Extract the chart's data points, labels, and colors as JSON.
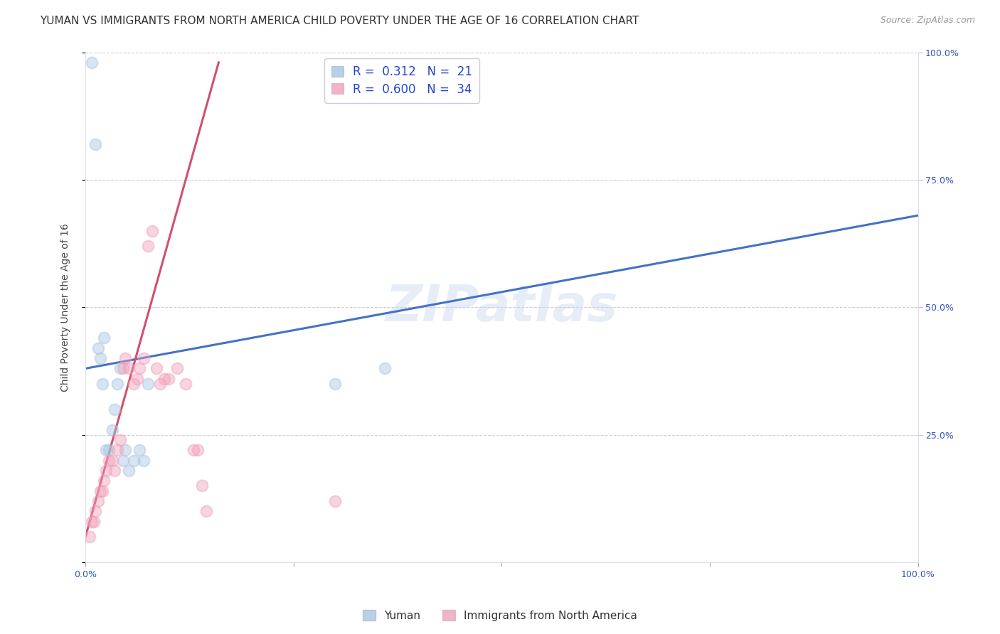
{
  "title": "YUMAN VS IMMIGRANTS FROM NORTH AMERICA CHILD POVERTY UNDER THE AGE OF 16 CORRELATION CHART",
  "source": "Source: ZipAtlas.com",
  "ylabel": "Child Poverty Under the Age of 16",
  "xlim": [
    0,
    1
  ],
  "ylim": [
    0,
    1
  ],
  "watermark": "ZIPatlas",
  "yuman_color": "#a8c4e0",
  "immigrants_color": "#f0a0b8",
  "yuman_line_color": "#4472c4",
  "immigrants_line_color": "#d05070",
  "background_color": "#ffffff",
  "grid_color": "#ccccdd",
  "yuman_points_x": [
    0.008,
    0.012,
    0.015,
    0.018,
    0.02,
    0.022,
    0.025,
    0.028,
    0.032,
    0.035,
    0.038,
    0.042,
    0.045,
    0.048,
    0.052,
    0.058,
    0.065,
    0.07,
    0.075,
    0.3,
    0.36
  ],
  "yuman_points_y": [
    0.98,
    0.82,
    0.42,
    0.4,
    0.35,
    0.44,
    0.22,
    0.22,
    0.26,
    0.3,
    0.35,
    0.38,
    0.2,
    0.22,
    0.18,
    0.2,
    0.22,
    0.2,
    0.35,
    0.35,
    0.38
  ],
  "immigrants_points_x": [
    0.005,
    0.008,
    0.01,
    0.012,
    0.015,
    0.018,
    0.02,
    0.022,
    0.025,
    0.028,
    0.032,
    0.035,
    0.038,
    0.042,
    0.045,
    0.048,
    0.052,
    0.058,
    0.062,
    0.065,
    0.07,
    0.075,
    0.08,
    0.085,
    0.09,
    0.095,
    0.1,
    0.11,
    0.12,
    0.13,
    0.135,
    0.14,
    0.145,
    0.3
  ],
  "immigrants_points_y": [
    0.05,
    0.08,
    0.08,
    0.1,
    0.12,
    0.14,
    0.14,
    0.16,
    0.18,
    0.2,
    0.2,
    0.18,
    0.22,
    0.24,
    0.38,
    0.4,
    0.38,
    0.35,
    0.36,
    0.38,
    0.4,
    0.62,
    0.65,
    0.38,
    0.35,
    0.36,
    0.36,
    0.38,
    0.35,
    0.22,
    0.22,
    0.15,
    0.1,
    0.12
  ],
  "yuman_line_x0": 0.0,
  "yuman_line_y0": 0.38,
  "yuman_line_x1": 1.0,
  "yuman_line_y1": 0.68,
  "immigrants_line_x0": 0.0,
  "immigrants_line_y0": 0.05,
  "immigrants_line_x1": 0.16,
  "immigrants_line_y1": 0.98,
  "title_fontsize": 11,
  "source_fontsize": 9,
  "axis_label_fontsize": 10,
  "tick_fontsize": 9,
  "legend_fontsize": 12,
  "marker_size": 130,
  "marker_alpha": 0.45,
  "line_width": 2.2
}
